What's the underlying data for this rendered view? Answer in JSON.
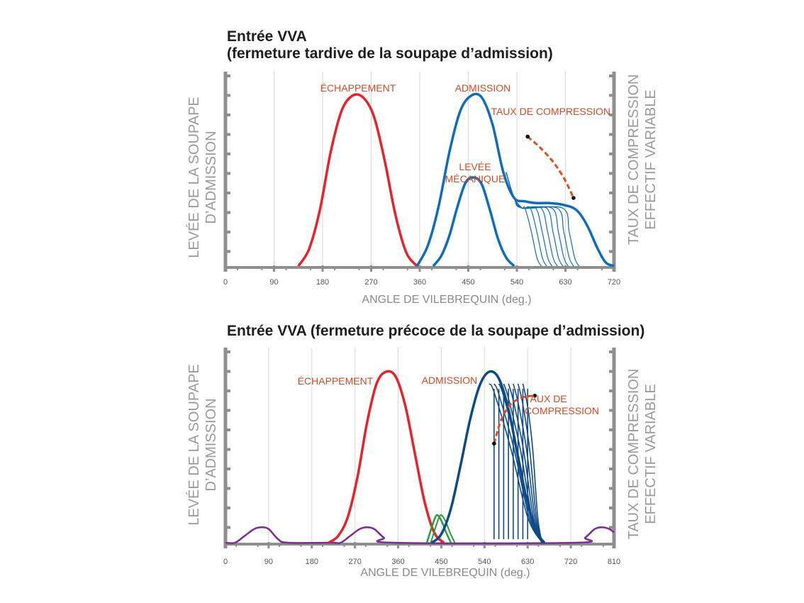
{
  "colors": {
    "exhaust": "#e8212a",
    "intake_top": "#0f6cba",
    "intake_bottom": "#0e4a86",
    "overlap": "#2a9a3e",
    "other_cycle": "#7d2a96",
    "compression": "#d85020",
    "annotation": "#d04a22",
    "axis": "#8e8e8e",
    "grid": "#d7d7d7",
    "label": "#9a9a9a"
  },
  "chart_data": [
    {
      "type": "line",
      "title_line1": "Entrée VVA",
      "title_line2": "(fermeture tardive de la soupape d’admission)",
      "xlabel": "ANGLE DE VILEBREQUIN (deg.)",
      "ylabel_left": [
        "LEVÉE DE LA SOUPAPE",
        "D’ADMISSION"
      ],
      "ylabel_right": [
        "TAUX DE COMPRESSION",
        "EFFECTIF VARIABLE"
      ],
      "xticks": [
        0,
        90,
        180,
        270,
        360,
        450,
        540,
        630,
        720
      ],
      "xlim": [
        0,
        720
      ],
      "ylim": [
        0,
        1.1
      ],
      "annotations": {
        "exhaust": "ÉCHAPPEMENT",
        "intake": "ADMISSION",
        "lift_line1": "LEVÉE",
        "lift_line2": "MÉCANIQUE",
        "compression": "TAUX DE COMPRESSION"
      },
      "series": [
        {
          "role": "exhaust",
          "x": [
            135,
            155,
            175,
            195,
            215,
            235,
            255,
            275,
            295,
            315,
            335,
            355
          ],
          "y": [
            0,
            0.1,
            0.33,
            0.67,
            0.91,
            1.0,
            0.99,
            0.88,
            0.62,
            0.3,
            0.08,
            0
          ]
        },
        {
          "role": "intake_full",
          "x": [
            355,
            375,
            395,
            415,
            435,
            455,
            475,
            495,
            515,
            535,
            555,
            575,
            600,
            625,
            650,
            670,
            690,
            705,
            720
          ],
          "y": [
            0,
            0.12,
            0.35,
            0.67,
            0.91,
            1.0,
            0.99,
            0.83,
            0.55,
            0.4,
            0.38,
            0.37,
            0.37,
            0.36,
            0.33,
            0.24,
            0.1,
            0.02,
            0
          ]
        },
        {
          "role": "intake_mechanical",
          "x": [
            385,
            400,
            415,
            430,
            445,
            460,
            475,
            490,
            505,
            520,
            535
          ],
          "y": [
            0,
            0.06,
            0.18,
            0.35,
            0.49,
            0.52,
            0.48,
            0.33,
            0.16,
            0.05,
            0
          ]
        },
        {
          "role": "closing_variants",
          "close_start": [
            555,
            565,
            575,
            585,
            595,
            605,
            615,
            625
          ],
          "level": 0.34
        },
        {
          "role": "compression_arrow",
          "x": [
            560,
            585,
            610,
            630,
            645
          ],
          "y": [
            0.76,
            0.69,
            0.6,
            0.5,
            0.4
          ]
        }
      ]
    },
    {
      "type": "line",
      "title": "Entrée VVA (fermeture précoce de la soupape d’admission)",
      "xlabel": "ANGLE DE VILEBREQUIN (deg.)",
      "ylabel_left": [
        "LEVÉE DE LA SOUPAPE",
        "D’ADMISSION"
      ],
      "ylabel_right": [
        "TAUX DE COMPRESSION",
        "EFFECTIF VARIABLE"
      ],
      "xticks": [
        0,
        90,
        180,
        270,
        360,
        450,
        540,
        630,
        720,
        810
      ],
      "xlim": [
        0,
        810
      ],
      "ylim": [
        0,
        1.1
      ],
      "annotations": {
        "exhaust": "ÉCHAPPEMENT",
        "intake": "ADMISSION",
        "compression_line1": "TAUX DE",
        "compression_line2": "COMPRESSION"
      },
      "series": [
        {
          "role": "other_cycle",
          "x": [
            0,
            20,
            40,
            60,
            75,
            90,
            110,
            130,
            220,
            240,
            260,
            280,
            295,
            310,
            330,
            350,
            730,
            750,
            770,
            785,
            800,
            810
          ],
          "y": [
            0,
            0,
            0.04,
            0.08,
            0.09,
            0.08,
            0.02,
            0,
            0,
            0,
            0.04,
            0.08,
            0.09,
            0.08,
            0.03,
            0,
            0,
            0.03,
            0.08,
            0.09,
            0.08,
            0.06
          ]
        },
        {
          "role": "exhaust",
          "x": [
            215,
            235,
            255,
            275,
            295,
            315,
            335,
            355,
            375,
            395,
            415,
            435,
            455
          ],
          "y": [
            0,
            0.04,
            0.15,
            0.38,
            0.7,
            0.93,
            1.0,
            0.97,
            0.8,
            0.52,
            0.24,
            0.06,
            0
          ]
        },
        {
          "role": "overlap",
          "x": [
            420,
            430,
            440,
            450,
            460,
            470
          ],
          "y": [
            0,
            0.09,
            0.16,
            0.13,
            0.06,
            0
          ]
        },
        {
          "role": "intake_full",
          "x": [
            430,
            450,
            470,
            490,
            510,
            530,
            550,
            570,
            590,
            610,
            630,
            650,
            665
          ],
          "y": [
            0,
            0.05,
            0.2,
            0.45,
            0.72,
            0.92,
            1.0,
            0.96,
            0.78,
            0.5,
            0.23,
            0.06,
            0
          ]
        },
        {
          "role": "closing_variants",
          "close_at": [
            560,
            570,
            580,
            590,
            600,
            610,
            620,
            630
          ]
        },
        {
          "role": "compression_arrow",
          "x": [
            560,
            575,
            595,
            620,
            645
          ],
          "y": [
            0.58,
            0.72,
            0.81,
            0.85,
            0.86
          ]
        }
      ]
    }
  ]
}
